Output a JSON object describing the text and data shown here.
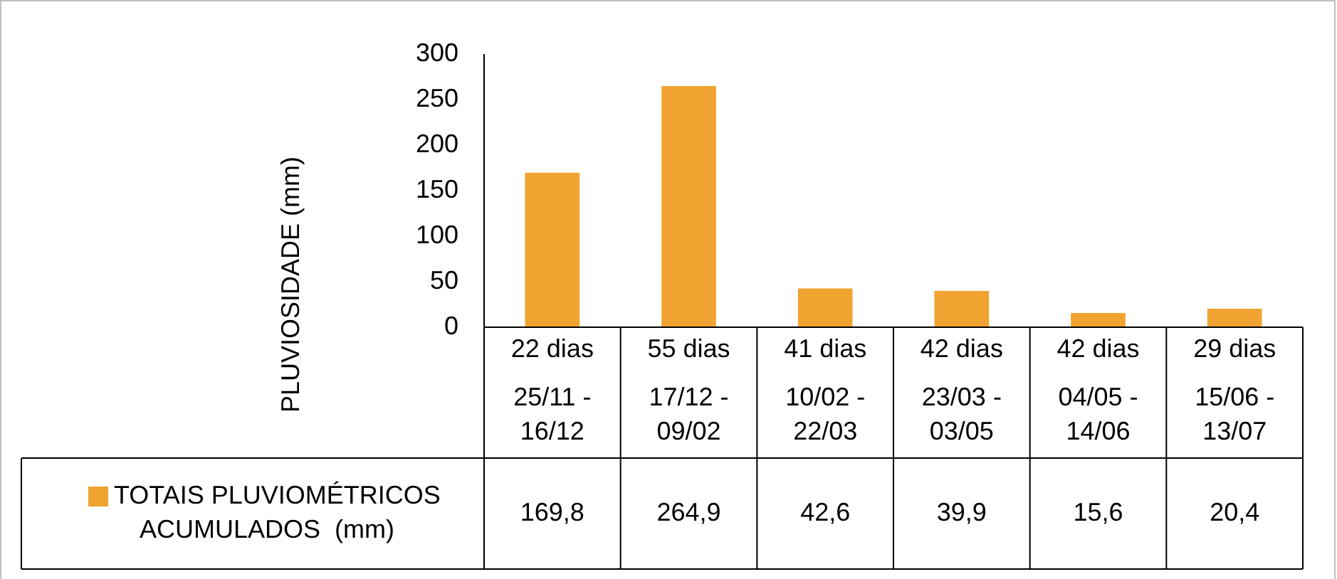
{
  "chart_data": {
    "type": "bar",
    "ylabel": "PLUVIOSIDADE (mm)",
    "categories": [
      "22 dias\n25/11 - 16/12",
      "55 dias\n17/12 - 09/02",
      "41 dias\n10/02 - 22/03",
      "42 dias\n23/03 - 03/05",
      "42 dias\n04/05 - 14/06",
      "29 dias\n15/06 - 13/07"
    ],
    "series": [
      {
        "name": "TOTAIS PLUVIOMÉTRICOS ACUMULADOS  (mm)",
        "color": "#f0a330",
        "values": [
          169.8,
          264.9,
          42.6,
          39.9,
          15.6,
          20.4
        ],
        "value_labels": [
          "169,8",
          "264,9",
          "42,6",
          "39,9",
          "15,6",
          "20,4"
        ]
      }
    ],
    "ylim": [
      0,
      300
    ],
    "yticks": [
      0,
      50,
      100,
      150,
      200,
      250,
      300
    ],
    "grid": false,
    "legend": "bottom left"
  }
}
